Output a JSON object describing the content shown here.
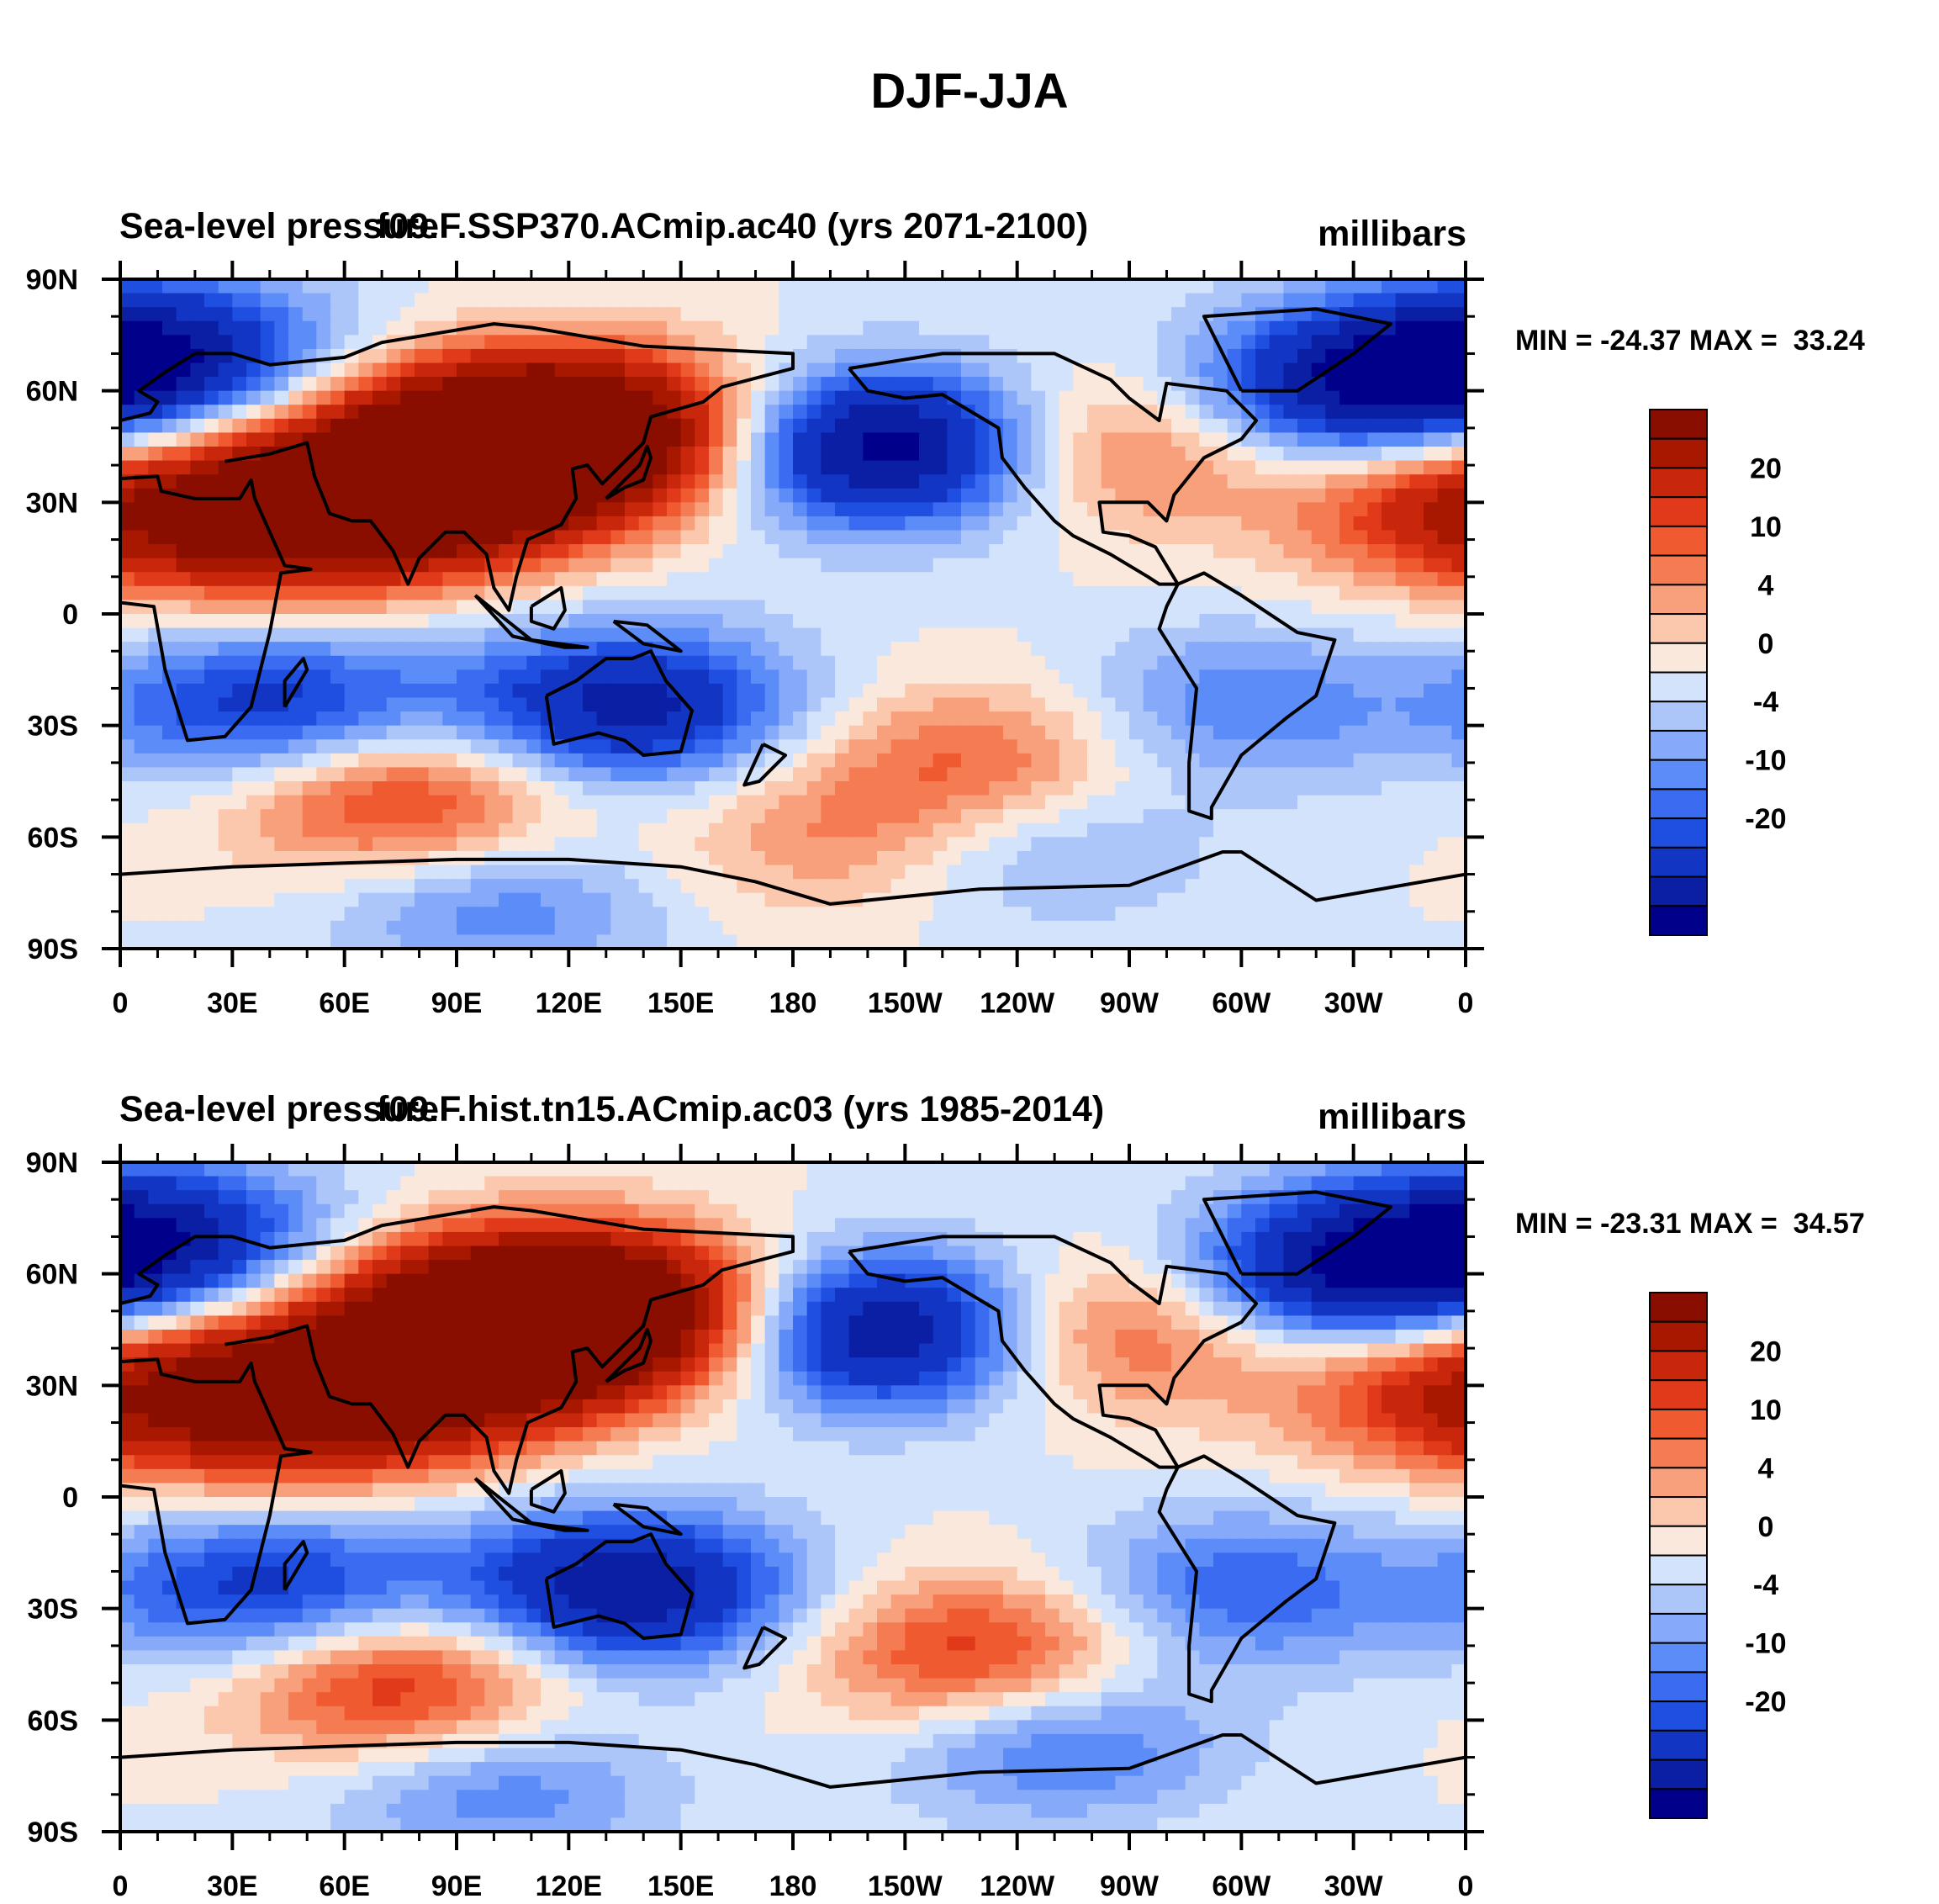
{
  "chart_data": {
    "type": "heatmap",
    "title": "DJF-JJA",
    "units": "millibars",
    "colorbar": {
      "levels": [
        -24,
        -20,
        -16,
        -12,
        -10,
        -8,
        -6,
        -4,
        -2,
        0,
        2,
        4,
        6,
        8,
        10,
        12,
        16,
        20,
        24
      ],
      "tick_labels": [
        "20",
        "10",
        "4",
        "0",
        "-4",
        "-10",
        "-20"
      ],
      "colors": [
        "#00008b",
        "#0b1fa4",
        "#1335c4",
        "#1f4fe0",
        "#3a6bf0",
        "#5b8cf7",
        "#86aaf9",
        "#adc6fa",
        "#d4e3fc",
        "#fbe8dc",
        "#fbc8ad",
        "#f8a07c",
        "#f57b52",
        "#f05a30",
        "#e13a1a",
        "#c8270c",
        "#a81800",
        "#8a0e00"
      ]
    },
    "x_axis": {
      "range": [
        0,
        360
      ],
      "tick_labels": [
        "0",
        "30E",
        "60E",
        "90E",
        "120E",
        "150E",
        "180",
        "150W",
        "120W",
        "90W",
        "60W",
        "30W",
        "0"
      ]
    },
    "y_axis": {
      "range": [
        -90,
        90
      ],
      "tick_labels": [
        "90N",
        "60N",
        "30N",
        "0",
        "30S",
        "60S",
        "90S"
      ]
    },
    "panels": [
      {
        "title_left": "Sea-level pressure",
        "title_center": "f09.F.SSP370.ACmip.ac40 (yrs 2071-2100)",
        "title_right": "millibars",
        "stats": "MIN = -24.37 MAX =  33.24",
        "min": -24.37,
        "max": 33.24,
        "features": [
          {
            "lon": 100,
            "lat": 45,
            "value": 30
          },
          {
            "lon": 70,
            "lat": 30,
            "value": 20
          },
          {
            "lon": 35,
            "lat": 25,
            "value": 14
          },
          {
            "lon": 130,
            "lat": 50,
            "value": 18
          },
          {
            "lon": 205,
            "lat": 45,
            "value": -24
          },
          {
            "lon": 265,
            "lat": 45,
            "value": 10
          },
          {
            "lon": 355,
            "lat": 30,
            "value": 12
          },
          {
            "lon": 10,
            "lat": 70,
            "value": -18
          },
          {
            "lon": 330,
            "lat": 60,
            "value": -18
          },
          {
            "lon": 40,
            "lat": -25,
            "value": -14
          },
          {
            "lon": 135,
            "lat": -25,
            "value": -18
          },
          {
            "lon": 300,
            "lat": -25,
            "value": -8
          },
          {
            "lon": 75,
            "lat": -50,
            "value": 13
          },
          {
            "lon": 230,
            "lat": -40,
            "value": 9
          },
          {
            "lon": 245,
            "lat": -62,
            "value": -6
          },
          {
            "lon": 100,
            "lat": -78,
            "value": -8
          },
          {
            "lon": 190,
            "lat": -60,
            "value": 6
          }
        ]
      },
      {
        "title_left": "Sea-level pressure",
        "title_center": "f09.F.hist.tn15.ACmip.ac03 (yrs 1985-2014)",
        "title_right": "millibars",
        "stats": "MIN = -23.31 MAX =  34.57",
        "min": -23.31,
        "max": 34.57,
        "features": [
          {
            "lon": 105,
            "lat": 48,
            "value": 32
          },
          {
            "lon": 70,
            "lat": 30,
            "value": 20
          },
          {
            "lon": 35,
            "lat": 25,
            "value": 14
          },
          {
            "lon": 135,
            "lat": 50,
            "value": 18
          },
          {
            "lon": 205,
            "lat": 45,
            "value": -22
          },
          {
            "lon": 265,
            "lat": 45,
            "value": 11
          },
          {
            "lon": 355,
            "lat": 30,
            "value": 12
          },
          {
            "lon": 10,
            "lat": 70,
            "value": -16
          },
          {
            "lon": 330,
            "lat": 60,
            "value": -20
          },
          {
            "lon": 40,
            "lat": -25,
            "value": -14
          },
          {
            "lon": 135,
            "lat": -25,
            "value": -20
          },
          {
            "lon": 300,
            "lat": -25,
            "value": -10
          },
          {
            "lon": 75,
            "lat": -50,
            "value": 14
          },
          {
            "lon": 230,
            "lat": -43,
            "value": 13
          },
          {
            "lon": 250,
            "lat": -65,
            "value": -10
          },
          {
            "lon": 100,
            "lat": -78,
            "value": -8
          }
        ]
      }
    ]
  }
}
